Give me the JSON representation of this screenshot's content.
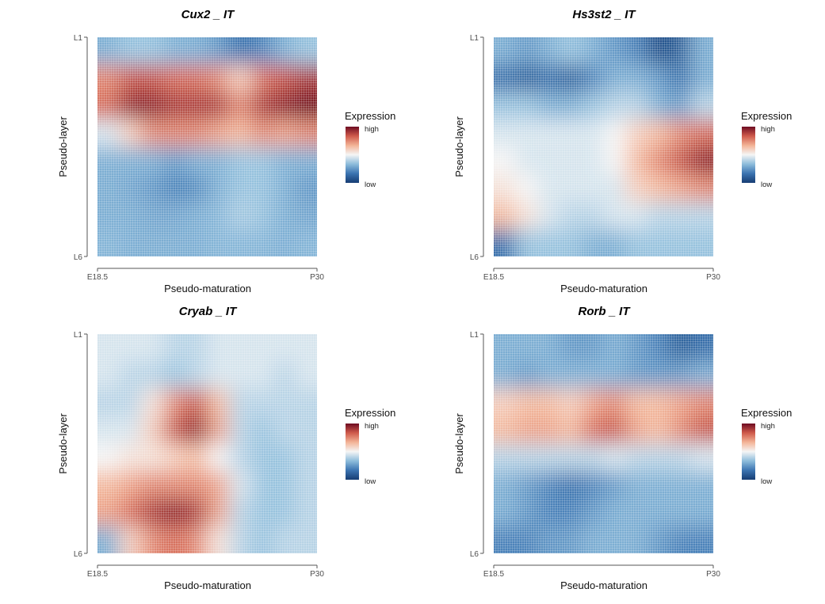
{
  "chart_data": [
    {
      "type": "heatmap",
      "title": "Cux2 _ IT",
      "xlabel": "Pseudo-maturation",
      "ylabel": "Pseudo-layer",
      "xticks": [
        "E18.5",
        "P30"
      ],
      "yticks": [
        "L1",
        "L6"
      ],
      "legend": {
        "title": "Expression",
        "high": "high",
        "low": "low",
        "placement": "right"
      },
      "value_scale": [
        0,
        1
      ],
      "grid": [
        [
          0.3,
          0.35,
          0.35,
          0.3,
          0.3,
          0.25,
          0.15,
          0.2,
          0.3,
          0.35
        ],
        [
          0.75,
          0.85,
          0.85,
          0.8,
          0.8,
          0.75,
          0.6,
          0.8,
          0.85,
          0.9
        ],
        [
          0.8,
          0.95,
          0.95,
          0.9,
          0.9,
          0.9,
          0.75,
          0.9,
          0.95,
          1.0
        ],
        [
          0.45,
          0.6,
          0.75,
          0.75,
          0.75,
          0.7,
          0.65,
          0.75,
          0.7,
          0.75
        ],
        [
          0.3,
          0.3,
          0.3,
          0.25,
          0.3,
          0.3,
          0.35,
          0.35,
          0.3,
          0.3
        ],
        [
          0.3,
          0.28,
          0.25,
          0.2,
          0.22,
          0.3,
          0.35,
          0.35,
          0.3,
          0.25
        ],
        [
          0.3,
          0.3,
          0.28,
          0.28,
          0.3,
          0.32,
          0.38,
          0.35,
          0.3,
          0.28
        ],
        [
          0.32,
          0.3,
          0.3,
          0.3,
          0.3,
          0.32,
          0.32,
          0.32,
          0.3,
          0.32
        ]
      ]
    },
    {
      "type": "heatmap",
      "title": "Hs3st2 _ IT",
      "xlabel": "Pseudo-maturation",
      "ylabel": "Pseudo-layer",
      "xticks": [
        "E18.5",
        "P30"
      ],
      "yticks": [
        "L1",
        "L6"
      ],
      "legend": {
        "title": "Expression",
        "high": "high",
        "low": "low",
        "placement": "right"
      },
      "value_scale": [
        0,
        1
      ],
      "grid": [
        [
          0.3,
          0.25,
          0.3,
          0.35,
          0.3,
          0.25,
          0.2,
          0.05,
          0.1,
          0.3
        ],
        [
          0.15,
          0.1,
          0.15,
          0.1,
          0.2,
          0.3,
          0.3,
          0.25,
          0.15,
          0.3
        ],
        [
          0.35,
          0.35,
          0.3,
          0.3,
          0.35,
          0.4,
          0.4,
          0.3,
          0.25,
          0.4
        ],
        [
          0.45,
          0.45,
          0.45,
          0.45,
          0.45,
          0.5,
          0.6,
          0.65,
          0.75,
          0.8
        ],
        [
          0.5,
          0.45,
          0.45,
          0.45,
          0.45,
          0.5,
          0.65,
          0.75,
          0.85,
          0.95
        ],
        [
          0.55,
          0.5,
          0.45,
          0.45,
          0.45,
          0.45,
          0.6,
          0.65,
          0.7,
          0.75
        ],
        [
          0.65,
          0.55,
          0.45,
          0.4,
          0.4,
          0.45,
          0.45,
          0.4,
          0.4,
          0.4
        ],
        [
          0.15,
          0.35,
          0.35,
          0.35,
          0.3,
          0.3,
          0.35,
          0.35,
          0.35,
          0.35
        ]
      ]
    },
    {
      "type": "heatmap",
      "title": "Cryab _ IT",
      "xlabel": "Pseudo-maturation",
      "ylabel": "Pseudo-layer",
      "xticks": [
        "E18.5",
        "P30"
      ],
      "yticks": [
        "L1",
        "L6"
      ],
      "legend": {
        "title": "Expression",
        "high": "high",
        "low": "low",
        "placement": "right"
      },
      "value_scale": [
        0,
        1
      ],
      "grid": [
        [
          0.45,
          0.45,
          0.45,
          0.4,
          0.4,
          0.45,
          0.45,
          0.45,
          0.45,
          0.45
        ],
        [
          0.45,
          0.4,
          0.4,
          0.35,
          0.4,
          0.45,
          0.45,
          0.45,
          0.4,
          0.45
        ],
        [
          0.4,
          0.4,
          0.55,
          0.75,
          0.85,
          0.65,
          0.4,
          0.4,
          0.4,
          0.4
        ],
        [
          0.45,
          0.45,
          0.6,
          0.85,
          0.95,
          0.7,
          0.4,
          0.35,
          0.4,
          0.4
        ],
        [
          0.5,
          0.55,
          0.55,
          0.6,
          0.65,
          0.5,
          0.4,
          0.35,
          0.35,
          0.4
        ],
        [
          0.65,
          0.7,
          0.75,
          0.75,
          0.75,
          0.7,
          0.45,
          0.35,
          0.35,
          0.4
        ],
        [
          0.7,
          0.8,
          0.9,
          0.95,
          0.9,
          0.7,
          0.4,
          0.35,
          0.35,
          0.4
        ],
        [
          0.3,
          0.6,
          0.75,
          0.8,
          0.75,
          0.55,
          0.4,
          0.35,
          0.4,
          0.4
        ]
      ]
    },
    {
      "type": "heatmap",
      "title": "Rorb _ IT",
      "xlabel": "Pseudo-maturation",
      "ylabel": "Pseudo-layer",
      "xticks": [
        "E18.5",
        "P30"
      ],
      "yticks": [
        "L1",
        "L6"
      ],
      "legend": {
        "title": "Expression",
        "high": "high",
        "low": "low",
        "placement": "right"
      },
      "value_scale": [
        0,
        1
      ],
      "grid": [
        [
          0.3,
          0.3,
          0.3,
          0.25,
          0.25,
          0.3,
          0.25,
          0.2,
          0.1,
          0.15
        ],
        [
          0.3,
          0.25,
          0.3,
          0.3,
          0.3,
          0.3,
          0.25,
          0.25,
          0.25,
          0.3
        ],
        [
          0.6,
          0.65,
          0.65,
          0.6,
          0.7,
          0.75,
          0.65,
          0.65,
          0.7,
          0.75
        ],
        [
          0.65,
          0.7,
          0.7,
          0.65,
          0.8,
          0.85,
          0.7,
          0.65,
          0.75,
          0.85
        ],
        [
          0.4,
          0.4,
          0.4,
          0.4,
          0.4,
          0.45,
          0.4,
          0.4,
          0.4,
          0.45
        ],
        [
          0.3,
          0.25,
          0.2,
          0.15,
          0.2,
          0.25,
          0.3,
          0.3,
          0.3,
          0.3
        ],
        [
          0.3,
          0.25,
          0.2,
          0.2,
          0.25,
          0.3,
          0.3,
          0.3,
          0.3,
          0.3
        ],
        [
          0.2,
          0.2,
          0.25,
          0.25,
          0.3,
          0.3,
          0.3,
          0.25,
          0.2,
          0.2
        ]
      ]
    }
  ],
  "colors": {
    "low": "#163d73",
    "mid": "#f5f5f5",
    "high": "#6e0b22",
    "stops": [
      "#163d73",
      "#3b74b1",
      "#8dbcdb",
      "#f5f5f5",
      "#f3b396",
      "#cf5a4b",
      "#6e0b22"
    ]
  }
}
